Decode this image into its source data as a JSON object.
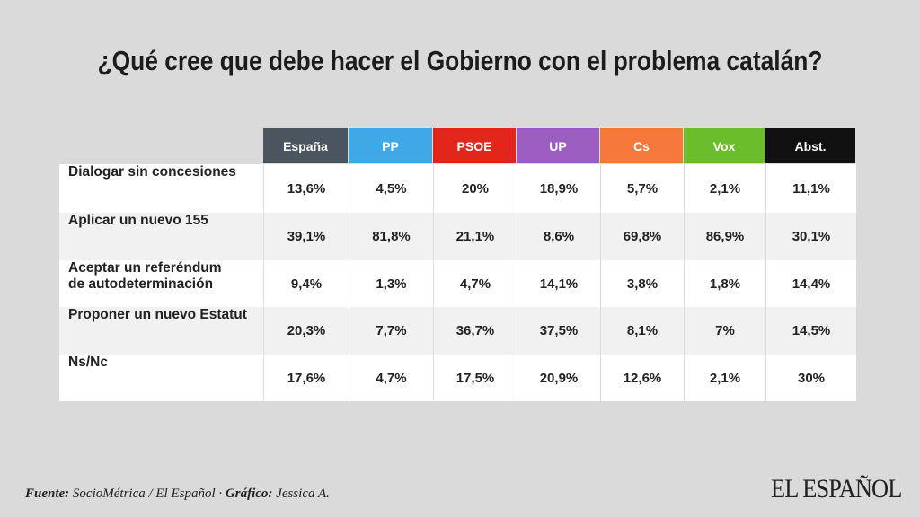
{
  "title": "¿Qué cree que debe hacer el Gobierno con el problema catalán?",
  "table": {
    "columns": [
      {
        "label": "España",
        "color": "#4a5560"
      },
      {
        "label": "PP",
        "color": "#3ea9e6"
      },
      {
        "label": "PSOE",
        "color": "#e3261b"
      },
      {
        "label": "UP",
        "color": "#9b5dbf"
      },
      {
        "label": "Cs",
        "color": "#f6793b"
      },
      {
        "label": "Vox",
        "color": "#6cbd2b"
      },
      {
        "label": "Abst.",
        "color": "#111111"
      }
    ],
    "rows": [
      {
        "label": [
          "Dialogar sin concesiones"
        ],
        "values": [
          "13,6%",
          "4,5%",
          "20%",
          "18,9%",
          "5,7%",
          "2,1%",
          "11,1%"
        ]
      },
      {
        "label": [
          "Aplicar un nuevo 155"
        ],
        "values": [
          "39,1%",
          "81,8%",
          "21,1%",
          "8,6%",
          "69,8%",
          "86,9%",
          "30,1%"
        ]
      },
      {
        "label": [
          "Aceptar un referéndum",
          "de autodeterminación"
        ],
        "values": [
          "9,4%",
          "1,3%",
          "4,7%",
          "14,1%",
          "3,8%",
          "1,8%",
          "14,4%"
        ]
      },
      {
        "label": [
          "Proponer un nuevo Estatut"
        ],
        "values": [
          "20,3%",
          "7,7%",
          "36,7%",
          "37,5%",
          "8,1%",
          "7%",
          "14,5%"
        ]
      },
      {
        "label": [
          "Ns/Nc"
        ],
        "values": [
          "17,6%",
          "4,7%",
          "17,5%",
          "20,9%",
          "12,6%",
          "2,1%",
          "30%"
        ]
      }
    ]
  },
  "footer": {
    "source_label": "Fuente:",
    "source": " SocioMétrica / El Español · ",
    "credit_label": "Gráfico:",
    "credit": " Jessica A."
  },
  "logo": "EL ESPAÑOL"
}
